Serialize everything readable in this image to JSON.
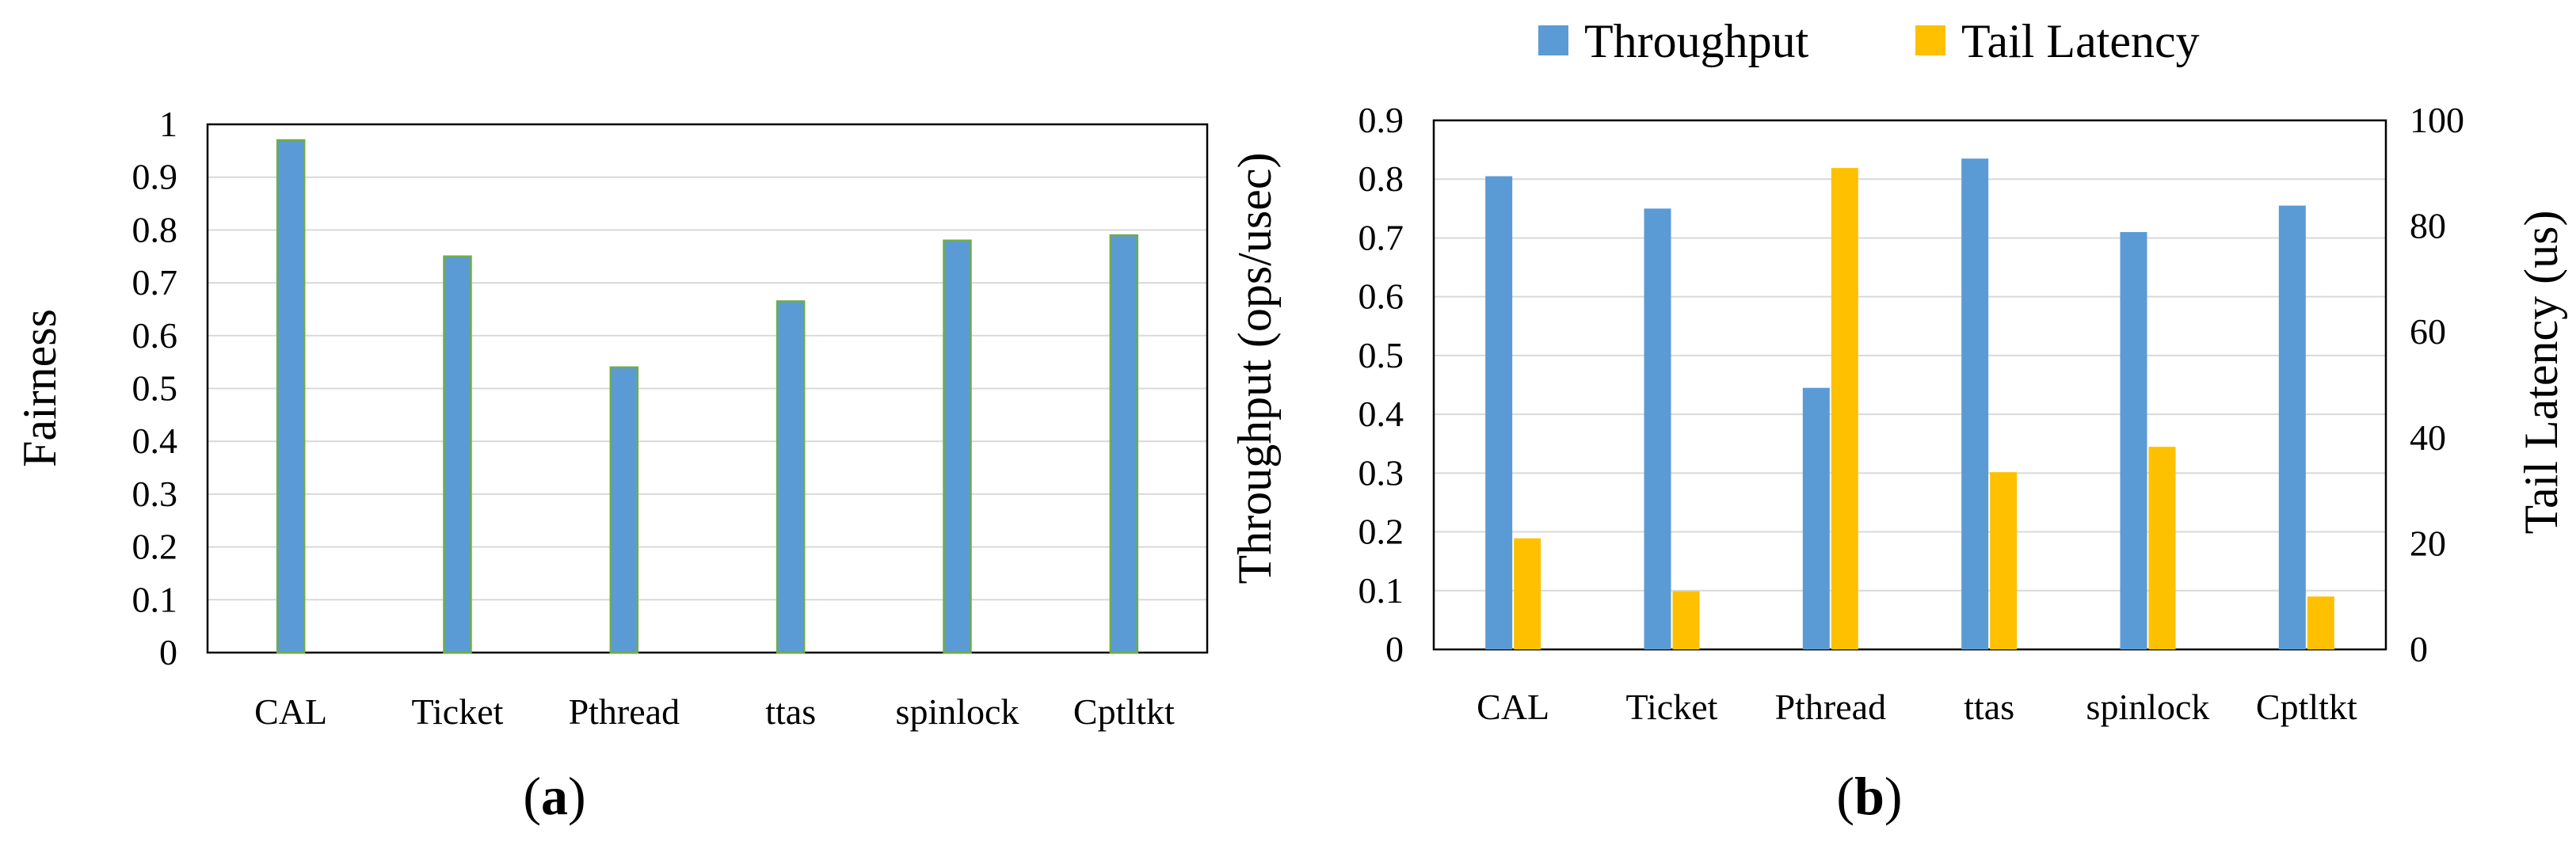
{
  "colors": {
    "throughput": "#5B9BD5",
    "tail_latency": "#FFC000",
    "fairness_edge": "#70AD47"
  },
  "chart_data": [
    {
      "type": "bar",
      "panel": "a",
      "categories": [
        "CAL",
        "Ticket",
        "Pthread",
        "ttas",
        "spinlock",
        "Cptltkt"
      ],
      "series": [
        {
          "name": "Fairness",
          "values": [
            0.97,
            0.75,
            0.54,
            0.665,
            0.78,
            0.79
          ]
        }
      ],
      "ylabel": "Fairness",
      "ylim": [
        0,
        1
      ],
      "yticks": [
        "0",
        "0.1",
        "0.2",
        "0.3",
        "0.4",
        "0.5",
        "0.6",
        "0.7",
        "0.8",
        "0.9",
        "1"
      ],
      "caption": "(a)"
    },
    {
      "type": "bar",
      "panel": "b",
      "categories": [
        "CAL",
        "Ticket",
        "Pthread",
        "ttas",
        "spinlock",
        "Cptltkt"
      ],
      "series": [
        {
          "name": "Throughput",
          "axis": "left",
          "values": [
            0.805,
            0.75,
            0.445,
            0.835,
            0.71,
            0.755
          ]
        },
        {
          "name": "Tail Latency",
          "axis": "right",
          "values": [
            21,
            11,
            91,
            33.5,
            38.3,
            10
          ]
        }
      ],
      "ylabel": "Throughput (ops/usec)",
      "ylabel_right": "Tail Latency (us)",
      "ylim": [
        0,
        0.9
      ],
      "ylim_right": [
        0,
        100
      ],
      "yticks": [
        "0",
        "0.1",
        "0.2",
        "0.3",
        "0.4",
        "0.5",
        "0.6",
        "0.7",
        "0.8",
        "0.9"
      ],
      "yticks_right": [
        "0",
        "20",
        "40",
        "60",
        "80",
        "100"
      ],
      "legend": [
        "Throughput",
        "Tail Latency"
      ],
      "legend_position": "top",
      "caption": "(b)"
    }
  ]
}
